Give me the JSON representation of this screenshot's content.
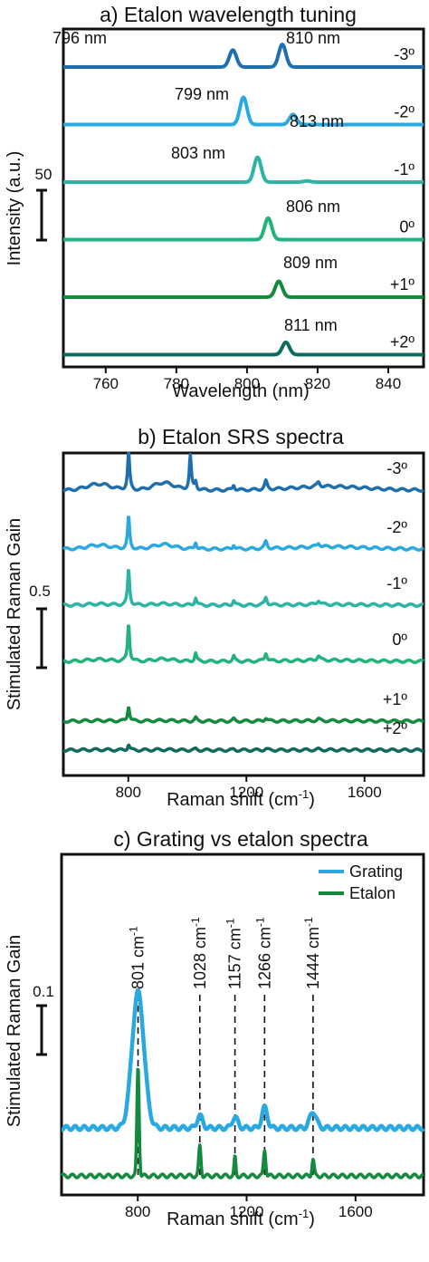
{
  "chart_data": [
    {
      "type": "line",
      "title": "a) Etalon wavelength tuning",
      "xlabel": "Wavelength (nm)",
      "ylabel": "Intensity (a.u.)",
      "xlim": [
        748,
        850
      ],
      "xticks": [
        760,
        780,
        800,
        820,
        840
      ],
      "scalebar_label": "50",
      "series": [
        {
          "name": "-3º",
          "color": "#1f6fae",
          "peaks": [
            {
              "x": 796,
              "h": 0.75,
              "w": 1.0
            },
            {
              "x": 810,
              "h": 1.0,
              "w": 1.0
            }
          ]
        },
        {
          "name": "-2º",
          "color": "#29a9df",
          "peaks": [
            {
              "x": 799,
              "h": 1.2,
              "w": 1.0
            },
            {
              "x": 813,
              "h": 0.45,
              "w": 1.0
            }
          ]
        },
        {
          "name": "-1º",
          "color": "#2cb5a3",
          "peaks": [
            {
              "x": 803,
              "h": 1.1,
              "w": 1.0
            },
            {
              "x": 817,
              "h": 0.05,
              "w": 1.0
            }
          ]
        },
        {
          "name": "0º",
          "color": "#22b27c",
          "peaks": [
            {
              "x": 806,
              "h": 0.95,
              "w": 1.0
            }
          ]
        },
        {
          "name": "+1º",
          "color": "#138a3e",
          "peaks": [
            {
              "x": 809,
              "h": 0.7,
              "w": 1.0
            }
          ]
        },
        {
          "name": "+2º",
          "color": "#0d6a5e",
          "peaks": [
            {
              "x": 811,
              "h": 0.55,
              "w": 1.0
            }
          ]
        }
      ],
      "annotations": [
        {
          "text": "796 nm",
          "x": 796
        },
        {
          "text": "810 nm",
          "x": 810
        },
        {
          "text": "799 nm",
          "x": 799
        },
        {
          "text": "813 nm",
          "x": 813
        },
        {
          "text": "803 nm",
          "x": 803
        },
        {
          "text": "806 nm",
          "x": 806
        },
        {
          "text": "809 nm",
          "x": 809
        },
        {
          "text": "811 nm",
          "x": 811
        }
      ]
    },
    {
      "type": "line",
      "title": "b) Etalon SRS spectra",
      "xlabel": "Raman shift (cm",
      "xlabel_sup": "-1",
      "xlabel_end": ")",
      "ylabel": "Stimulated Raman Gain",
      "xlim": [
        580,
        1800
      ],
      "xticks": [
        800,
        1200,
        1600
      ],
      "scalebar_label": "0.5",
      "series": [
        {
          "name": "-3º",
          "color": "#1f6fae",
          "scale": 1.0,
          "broad": 0.32
        },
        {
          "name": "-2º",
          "color": "#29a9df",
          "scale": 0.85,
          "broad": 0.2
        },
        {
          "name": "-1º",
          "color": "#2cb5a3",
          "scale": 0.95,
          "broad": 0.06
        },
        {
          "name": "0º",
          "color": "#22b27c",
          "scale": 1.0,
          "broad": 0.1
        },
        {
          "name": "+1º",
          "color": "#138a3e",
          "scale": 0.4,
          "broad": 0.03
        },
        {
          "name": "+2º",
          "color": "#0d6a5e",
          "scale": 0.15,
          "broad": 0.02
        }
      ]
    },
    {
      "type": "line",
      "title": "c) Grating vs etalon spectra",
      "xlabel": "Raman shift (cm",
      "xlabel_sup": "-1",
      "xlabel_end": ")",
      "ylabel": "Stimulated Raman Gain",
      "xlim": [
        520,
        1850
      ],
      "xticks": [
        800,
        1200,
        1600
      ],
      "scalebar_label": "0.1",
      "legend_position": "top-right",
      "series": [
        {
          "name": "Grating",
          "color": "#29a9df"
        },
        {
          "name": "Etalon",
          "color": "#138a3e"
        }
      ],
      "peak_lines": [
        {
          "x": 801,
          "label": "801 cm",
          "sup": "-1"
        },
        {
          "x": 1028,
          "label": "1028 cm",
          "sup": "-1"
        },
        {
          "x": 1157,
          "label": "1157 cm",
          "sup": "-1"
        },
        {
          "x": 1266,
          "label": "1266 cm",
          "sup": "-1"
        },
        {
          "x": 1444,
          "label": "1444 cm",
          "sup": "-1"
        }
      ]
    }
  ]
}
